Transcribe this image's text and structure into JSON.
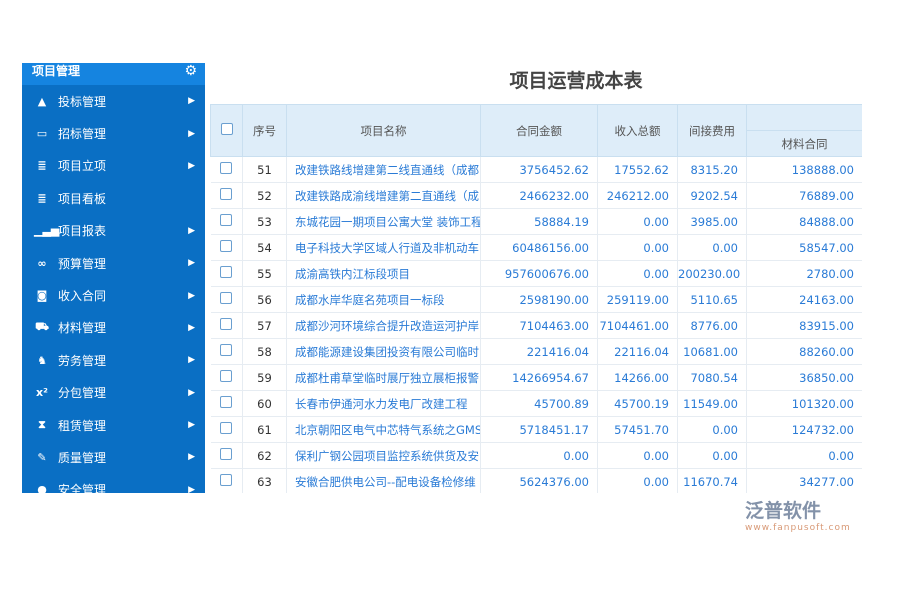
{
  "sidebar": {
    "title": "项目管理",
    "items": [
      {
        "label": "投标管理",
        "icon": "road-icon",
        "glyph": "▲",
        "arrow": true
      },
      {
        "label": "招标管理",
        "icon": "inbox-icon",
        "glyph": "▭",
        "arrow": true
      },
      {
        "label": "项目立项",
        "icon": "document-icon",
        "glyph": "≣",
        "arrow": true
      },
      {
        "label": "项目看板",
        "icon": "document-icon",
        "glyph": "≣",
        "arrow": false
      },
      {
        "label": "项目报表",
        "icon": "signal-icon",
        "glyph": "▁▃▅",
        "arrow": true
      },
      {
        "label": "预算管理",
        "icon": "link-icon",
        "glyph": "∞",
        "arrow": true
      },
      {
        "label": "收入合同",
        "icon": "money-icon",
        "glyph": "◙",
        "arrow": true
      },
      {
        "label": "材料管理",
        "icon": "cart-icon",
        "glyph": "⛟",
        "arrow": true
      },
      {
        "label": "劳务管理",
        "icon": "fox-icon",
        "glyph": "♞",
        "arrow": true
      },
      {
        "label": "分包管理",
        "icon": "superscript-icon",
        "glyph": "x²",
        "arrow": true
      },
      {
        "label": "租赁管理",
        "icon": "hourglass-icon",
        "glyph": "⧗",
        "arrow": true
      },
      {
        "label": "质量管理",
        "icon": "edit-icon",
        "glyph": "✎",
        "arrow": true
      },
      {
        "label": "安全管理",
        "icon": "comment-icon",
        "glyph": "●",
        "arrow": true
      }
    ]
  },
  "main": {
    "title": "项目运营成本表",
    "columns": {
      "seq": "序号",
      "name": "项目名称",
      "contract": "合同金额",
      "income": "收入总额",
      "indirect": "间接费用",
      "material": "材料合同"
    },
    "rows": [
      [
        "51",
        "改建铁路线增建第二线直通线（成都",
        "3756452.62",
        "17552.62",
        "8315.20",
        "138888.00"
      ],
      [
        "52",
        "改建铁路成渝线增建第二直通线（成",
        "2466232.00",
        "246212.00",
        "9202.54",
        "76889.00"
      ],
      [
        "53",
        "东城花园一期项目公寓大堂 装饰工程",
        "58884.19",
        "0.00",
        "3985.00",
        "84888.00"
      ],
      [
        "54",
        "电子科技大学区域人行道及非机动车",
        "60486156.00",
        "0.00",
        "0.00",
        "58547.00"
      ],
      [
        "55",
        "成渝高铁内江标段项目",
        "957600676.00",
        "0.00",
        "200230.00",
        "2780.00"
      ],
      [
        "56",
        "成都水岸华庭名苑项目一标段",
        "2598190.00",
        "259119.00",
        "5110.65",
        "24163.00"
      ],
      [
        "57",
        "成都沙河环境综合提升改造运河护岸",
        "7104463.00",
        "7104461.00",
        "8776.00",
        "83915.00"
      ],
      [
        "58",
        "成都能源建设集团投资有限公司临时",
        "221416.04",
        "22116.04",
        "10681.00",
        "88260.00"
      ],
      [
        "59",
        "成都杜甫草堂临时展厅独立展柜报警",
        "14266954.67",
        "14266.00",
        "7080.54",
        "36850.00"
      ],
      [
        "60",
        "长春市伊通河水力发电厂改建工程",
        "45700.89",
        "45700.19",
        "11549.00",
        "101320.00"
      ],
      [
        "61",
        "北京朝阳区电气中芯特气系统之GMS",
        "5718451.17",
        "57451.70",
        "0.00",
        "124732.00"
      ],
      [
        "62",
        "保利广钢公园项目监控系统供货及安",
        "0.00",
        "0.00",
        "0.00",
        "0.00"
      ],
      [
        "63",
        "安徽合肥供电公司--配电设备检修维",
        "5624376.00",
        "0.00",
        "11670.74",
        "34277.00"
      ]
    ]
  },
  "watermark": {
    "brand": "泛普软件",
    "url": "www.fanpusoft.com"
  }
}
